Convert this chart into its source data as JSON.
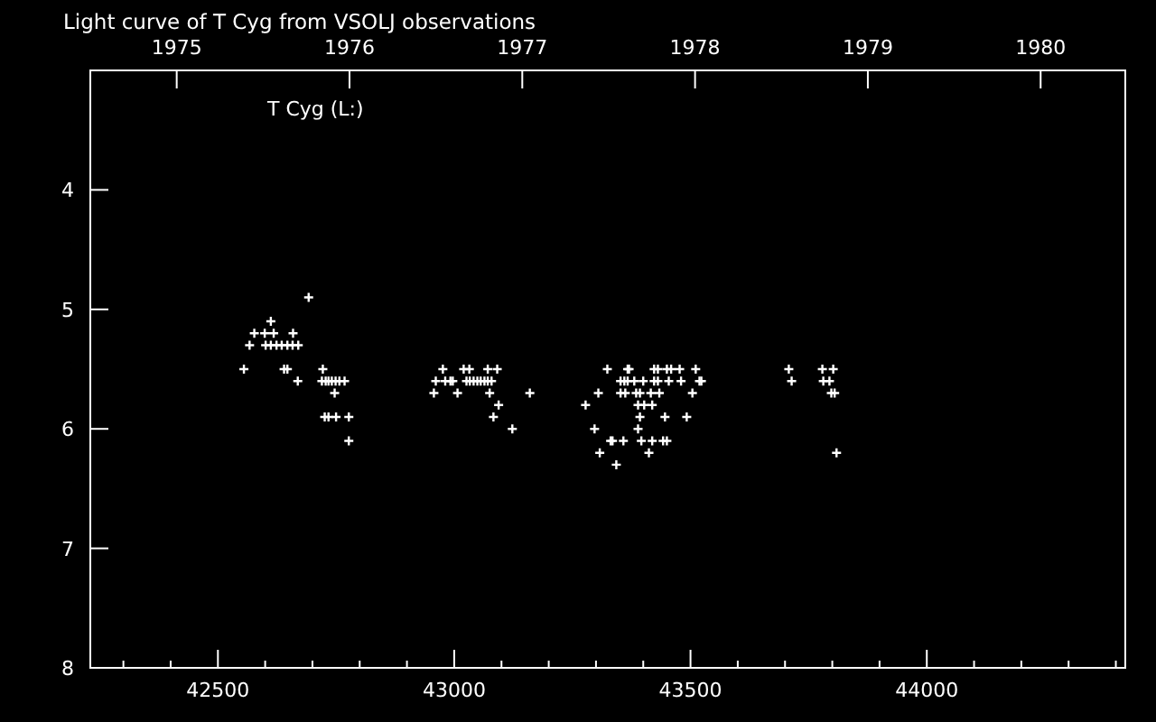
{
  "chart_data": {
    "type": "scatter",
    "title": "Light curve of T Cyg from VSOLJ observations",
    "annotations": [
      "T Cyg (L:)"
    ],
    "marker": "cross",
    "grid": false,
    "xlim": [
      42230,
      44420
    ],
    "xticks": [
      {
        "value": 42300,
        "label": null
      },
      {
        "value": 42400,
        "label": null
      },
      42500,
      {
        "value": 42600,
        "label": null
      },
      {
        "value": 42700,
        "label": null
      },
      {
        "value": 42800,
        "label": null
      },
      {
        "value": 42900,
        "label": null
      },
      43000,
      {
        "value": 43100,
        "label": null
      },
      {
        "value": 43200,
        "label": null
      },
      {
        "value": 43300,
        "label": null
      },
      {
        "value": 43400,
        "label": null
      },
      43500,
      {
        "value": 43600,
        "label": null
      },
      {
        "value": 43700,
        "label": null
      },
      {
        "value": 43800,
        "label": null
      },
      {
        "value": 43900,
        "label": null
      },
      44000,
      {
        "value": 44100,
        "label": null
      },
      {
        "value": 44200,
        "label": null
      },
      {
        "value": 44300,
        "label": null
      },
      {
        "value": 44400,
        "label": null
      }
    ],
    "x2lim": [
      1974.5,
      1980.49
    ],
    "x2ticks": [
      1975,
      1976,
      1977,
      1978,
      1979,
      1980
    ],
    "ylim": [
      8,
      3
    ],
    "yticks": [
      4,
      5,
      6,
      7,
      8
    ],
    "series": [
      {
        "color": "#ffffff",
        "x": [
          42692,
          42612,
          42577,
          42599,
          42618,
          42659,
          42567,
          42601,
          42612,
          42624,
          42635,
          42647,
          42658,
          42670,
          42555,
          42640,
          42647,
          42722,
          42976,
          43020,
          43032,
          43071,
          43091,
          43324,
          42669,
          42720,
          42728,
          42734,
          42741,
          42749,
          42757,
          42768,
          42961,
          42981,
          42992,
          42997,
          43026,
          43033,
          43041,
          43049,
          43056,
          43064,
          43071,
          43079,
          42747,
          42957,
          43007,
          43075,
          43160,
          43305,
          43094,
          43278,
          42726,
          42734,
          42750,
          42777,
          43083,
          43123,
          43297,
          42777,
          43308,
          43331,
          43367,
          43370,
          43423,
          43431,
          43450,
          43459,
          43477,
          43511,
          43708,
          43779,
          43802,
          43352,
          43360,
          43367,
          43381,
          43400,
          43423,
          43431,
          43454,
          43480,
          43519,
          43523,
          43714,
          43781,
          43794,
          43352,
          43362,
          43385,
          43393,
          43416,
          43434,
          43504,
          43798,
          43805,
          43389,
          43402,
          43419,
          43393,
          43446,
          43492,
          43389,
          43335,
          43358,
          43396,
          43419,
          43442,
          43450,
          43412,
          43809,
          43343
        ],
        "values": [
          4.9,
          5.1,
          5.2,
          5.2,
          5.2,
          5.2,
          5.3,
          5.3,
          5.3,
          5.3,
          5.3,
          5.3,
          5.3,
          5.3,
          5.5,
          5.5,
          5.5,
          5.5,
          5.5,
          5.5,
          5.5,
          5.5,
          5.5,
          5.5,
          5.6,
          5.6,
          5.6,
          5.6,
          5.6,
          5.6,
          5.6,
          5.6,
          5.6,
          5.6,
          5.6,
          5.6,
          5.6,
          5.6,
          5.6,
          5.6,
          5.6,
          5.6,
          5.6,
          5.6,
          5.7,
          5.7,
          5.7,
          5.7,
          5.7,
          5.7,
          5.8,
          5.8,
          5.9,
          5.9,
          5.9,
          5.9,
          5.9,
          6.0,
          6.0,
          6.1,
          6.2,
          6.1,
          5.5,
          5.5,
          5.5,
          5.5,
          5.5,
          5.5,
          5.5,
          5.5,
          5.5,
          5.5,
          5.5,
          5.6,
          5.6,
          5.6,
          5.6,
          5.6,
          5.6,
          5.6,
          5.6,
          5.6,
          5.6,
          5.6,
          5.6,
          5.6,
          5.6,
          5.7,
          5.7,
          5.7,
          5.7,
          5.7,
          5.7,
          5.7,
          5.7,
          5.7,
          5.8,
          5.8,
          5.8,
          5.9,
          5.9,
          5.9,
          6.0,
          6.1,
          6.1,
          6.1,
          6.1,
          6.1,
          6.1,
          6.2,
          6.2,
          6.3
        ]
      }
    ]
  }
}
